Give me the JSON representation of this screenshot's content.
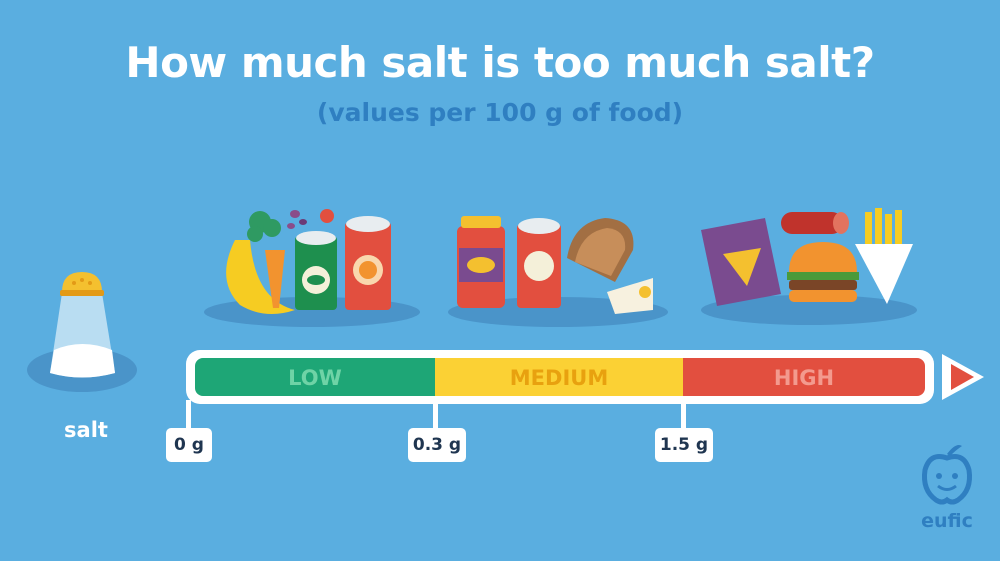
{
  "title": "How much salt is too much salt?",
  "subtitle": "(values per 100 g of food)",
  "salt_label": "salt",
  "scale": {
    "segments": [
      {
        "label": "LOW",
        "color": "#1ea676",
        "text_color": "#6fd3a6"
      },
      {
        "label": "MEDIUM",
        "color": "#fbd134",
        "text_color": "#e8a10f"
      },
      {
        "label": "HIGH",
        "color": "#e24f3f",
        "text_color": "#f39a8e"
      }
    ],
    "ticks": [
      "0 g",
      "0.3 g",
      "1.5 g"
    ]
  },
  "food_groups": [
    {
      "level": "low",
      "icons": [
        "banana-icon",
        "carrot-icon",
        "broccoli-icon",
        "beans-icon",
        "strawberry-icon",
        "pea-can-icon",
        "tomato-can-icon"
      ]
    },
    {
      "level": "medium",
      "icons": [
        "sauce-jar-icon",
        "soup-can-icon",
        "bread-icon",
        "cheese-icon"
      ]
    },
    {
      "level": "high",
      "icons": [
        "crisps-bag-icon",
        "salami-icon",
        "burger-icon",
        "fries-icon"
      ]
    }
  ],
  "salt_icon": "salt-shaker-icon",
  "logo": {
    "text": "eufic",
    "icon": "apple-face-icon"
  }
}
